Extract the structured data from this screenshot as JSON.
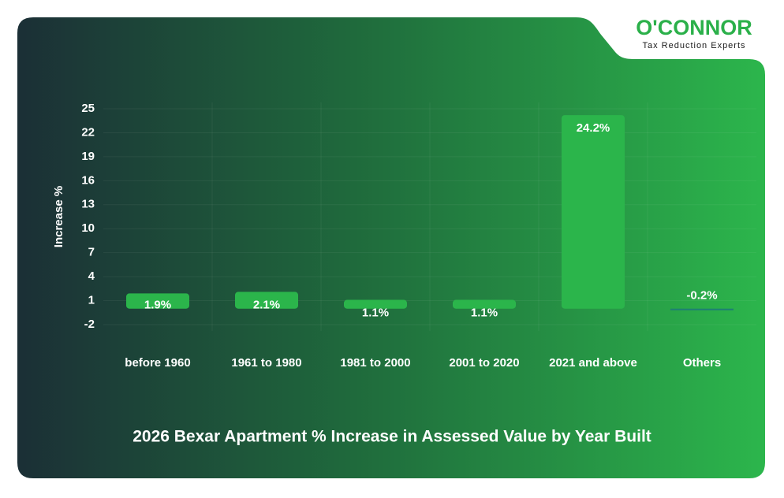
{
  "logo": {
    "name": "O'CONNOR",
    "tagline": "Tax Reduction Experts"
  },
  "chart_data": {
    "type": "bar",
    "title": "2026 Bexar Apartment % Increase in Assessed Value by Year Built",
    "y_label": "Increase %",
    "categories": [
      "before 1960",
      "1961 to 1980",
      "1981 to 2000",
      "2001 to 2020",
      "2021 and above",
      "Others"
    ],
    "values": [
      1.9,
      2.1,
      1.1,
      1.1,
      24.2,
      -0.2
    ],
    "value_labels": [
      "1.9%",
      "2.1%",
      "1.1%",
      "1.1%",
      "24.2%",
      "-0.2%"
    ],
    "color": "#2bb54b",
    "negative_color": "#1d7f74",
    "ylim": [
      -2,
      25
    ],
    "yticks": [
      -2,
      1,
      4,
      7,
      10,
      13,
      16,
      19,
      22,
      25
    ],
    "grid": true
  }
}
